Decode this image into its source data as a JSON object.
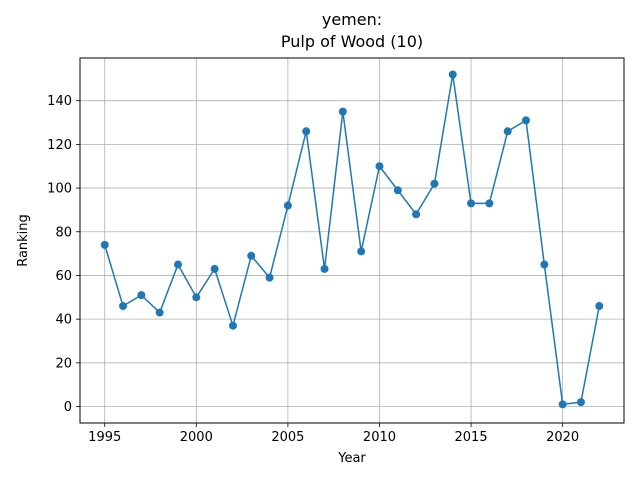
{
  "chart_data": {
    "type": "line",
    "title_line1": "yemen:",
    "title_line2": "Pulp of Wood (10)",
    "xlabel": "Year",
    "ylabel": "Ranking",
    "grid": true,
    "xlim": [
      1993.65,
      2023.35
    ],
    "ylim": [
      -7.55,
      159.55
    ],
    "xticks": [
      1995,
      2000,
      2005,
      2010,
      2015,
      2020
    ],
    "yticks": [
      0,
      20,
      40,
      60,
      80,
      100,
      120,
      140
    ],
    "series": [
      {
        "color": "#1f77b4",
        "x": [
          1995,
          1996,
          1997,
          1998,
          1999,
          2000,
          2001,
          2002,
          2003,
          2004,
          2005,
          2006,
          2007,
          2008,
          2009,
          2010,
          2011,
          2012,
          2013,
          2014,
          2015,
          2016,
          2017,
          2018,
          2019,
          2020,
          2021,
          2022
        ],
        "y": [
          74,
          46,
          51,
          43,
          65,
          50,
          63,
          37,
          69,
          59,
          92,
          126,
          63,
          135,
          71,
          110,
          99,
          88,
          102,
          152,
          93,
          93,
          126,
          131,
          65,
          1,
          2,
          46
        ]
      }
    ]
  }
}
